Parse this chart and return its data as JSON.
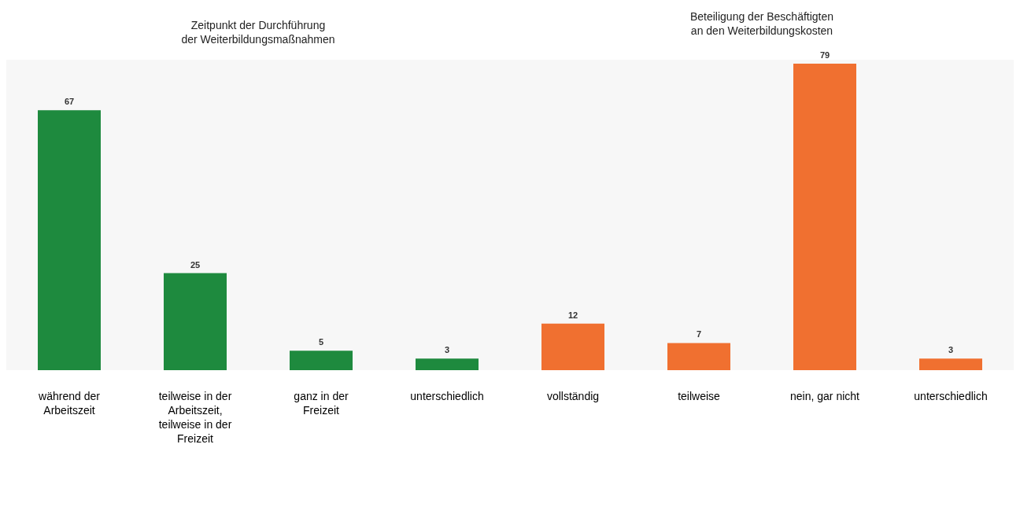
{
  "chart_data": [
    {
      "type": "bar",
      "title": "Zeitpunkt der Durchführung der Weiterbildungsmaßnahmen",
      "categories": [
        "während der Arbeitszeit",
        "teilweise in der Arbeitszeit, teilweise in der Freizeit",
        "ganz in der Freizeit",
        "unterschiedlich"
      ],
      "values": [
        67,
        25,
        5,
        3
      ],
      "color": "#1e8a3e",
      "data_labels": true
    },
    {
      "type": "bar",
      "title": "Beteiligung der Beschäftigten an den Weiterbildungskosten",
      "categories": [
        "vollständig",
        "teilweise",
        "nein, gar nicht",
        "unterschiedlich"
      ],
      "values": [
        12,
        7,
        79,
        3
      ],
      "color": "#f07030",
      "data_labels": true
    }
  ]
}
